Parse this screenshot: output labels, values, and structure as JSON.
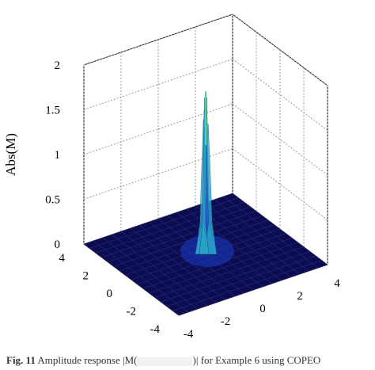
{
  "chart_data": {
    "type": "surface",
    "zlabel": "Abs(M)",
    "x_ticks": [
      "-4",
      "-2",
      "0",
      "2",
      "4"
    ],
    "y_ticks": [
      "-4",
      "-2",
      "0",
      "2",
      "4"
    ],
    "z_ticks": [
      "0",
      "0.5",
      "1",
      "1.5",
      "2"
    ],
    "xlim": [
      -4,
      4
    ],
    "ylim": [
      -4,
      4
    ],
    "zlim": [
      0,
      2
    ],
    "grid": true,
    "colormap": "jet",
    "peak": {
      "x": 0,
      "y": 0,
      "z": 1.75
    },
    "surface_colors": {
      "base": "#0c0c50",
      "low": "#1a3cc8",
      "mid": "#2aa6c8",
      "high": "#58d090"
    }
  },
  "caption": {
    "fig_label": "Fig. 11",
    "text_before": "Amplitude response |M(",
    "text_after": ")| for Example 6 using COPEO"
  }
}
